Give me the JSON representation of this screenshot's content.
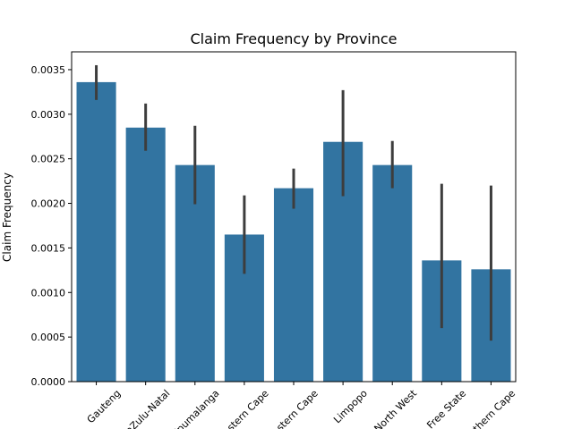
{
  "chart_data": {
    "type": "bar",
    "title": "Claim Frequency by Province",
    "xlabel": "",
    "ylabel": "Claim Frequency",
    "categories": [
      "Gauteng",
      "KwaZulu-Natal",
      "Mpumalanga",
      "Western Cape",
      "Eastern Cape",
      "Limpopo",
      "North West",
      "Free State",
      "Northern Cape"
    ],
    "series": [
      {
        "values": [
          0.00336,
          0.00285,
          0.00243,
          0.00165,
          0.00217,
          0.00269,
          0.00243,
          0.00136,
          0.00126
        ],
        "error_low": [
          0.00316,
          0.00259,
          0.00199,
          0.00121,
          0.00194,
          0.00208,
          0.00217,
          0.0006,
          0.00046
        ],
        "error_high": [
          0.00355,
          0.00312,
          0.00287,
          0.00209,
          0.00239,
          0.00327,
          0.0027,
          0.00222,
          0.0022
        ]
      }
    ],
    "ylim": [
      0,
      0.0037
    ],
    "yticks": [
      "0.0000",
      "0.0005",
      "0.0010",
      "0.0015",
      "0.0020",
      "0.0025",
      "0.0030",
      "0.0035"
    ],
    "grid": false,
    "bar_color": "#3274a1",
    "error_color": "#3d3d3d"
  }
}
